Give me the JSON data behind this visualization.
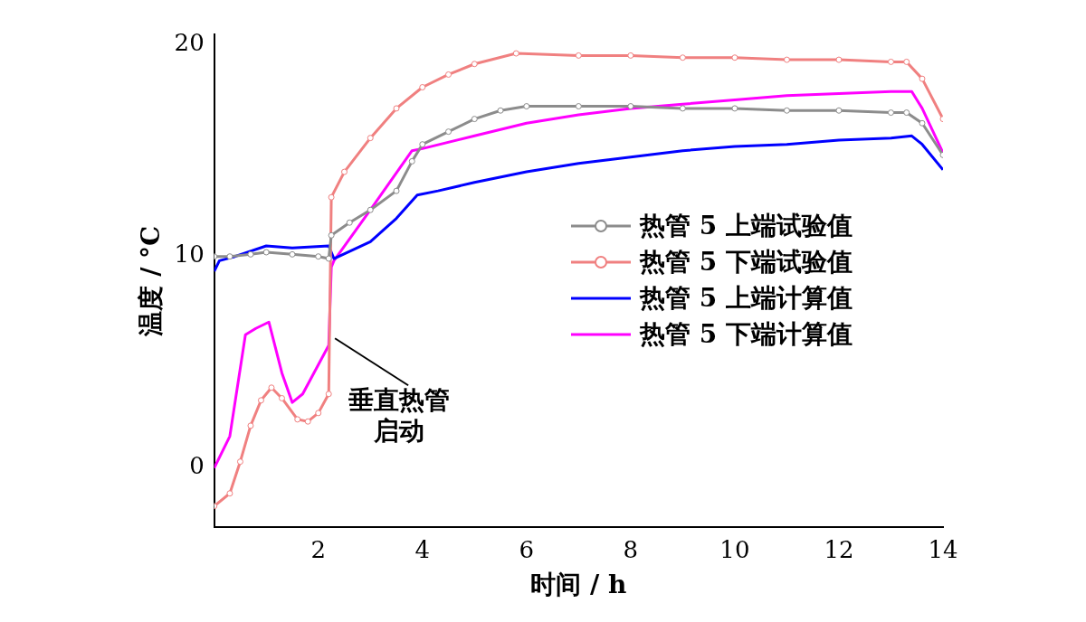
{
  "chart_data": {
    "type": "line",
    "xlabel": "时间 / h",
    "ylabel": "温度 / °C",
    "xlim": [
      0,
      14
    ],
    "xticks": [
      2,
      4,
      6,
      8,
      10,
      12,
      14
    ],
    "ylim": [
      -2.8,
      20.5
    ],
    "yticks": [
      0,
      10,
      20
    ],
    "grid": false,
    "legend": "right",
    "line_style": "solid",
    "annotations": [
      {
        "text": "垂直热管启动",
        "x": 2.25,
        "y": 6.3
      }
    ],
    "series": [
      {
        "name": "热管 5 上端试验值",
        "color": "#8c8c8c",
        "marker": "circle",
        "x": [
          0,
          0.3,
          0.7,
          1.0,
          1.5,
          2.0,
          2.2,
          2.25,
          2.6,
          3.0,
          3.5,
          3.8,
          4.0,
          4.5,
          5,
          5.5,
          6,
          7,
          8,
          9,
          10,
          11,
          12,
          13,
          13.3,
          13.6,
          14
        ],
        "values": [
          10.0,
          10.0,
          10.1,
          10.2,
          10.1,
          10.0,
          9.9,
          11.0,
          11.6,
          12.2,
          13.1,
          14.5,
          15.3,
          15.9,
          16.5,
          16.9,
          17.1,
          17.1,
          17.1,
          17.0,
          17.0,
          16.9,
          16.9,
          16.8,
          16.8,
          16.3,
          14.8
        ]
      },
      {
        "name": "热管 5 下端试验值",
        "color": "#f08080",
        "marker": "circle",
        "x": [
          0,
          0.3,
          0.5,
          0.7,
          0.9,
          1.1,
          1.3,
          1.6,
          1.8,
          2.0,
          2.2,
          2.25,
          2.5,
          3.0,
          3.5,
          4.0,
          4.5,
          5,
          5.8,
          7,
          8,
          9,
          10,
          11,
          12,
          13,
          13.3,
          13.6,
          14
        ],
        "values": [
          -1.8,
          -1.2,
          0.3,
          2.0,
          3.2,
          3.8,
          3.3,
          2.3,
          2.2,
          2.6,
          3.5,
          12.8,
          14.0,
          15.6,
          17.0,
          18.0,
          18.6,
          19.1,
          19.6,
          19.5,
          19.5,
          19.4,
          19.4,
          19.3,
          19.3,
          19.2,
          19.2,
          18.4,
          16.5
        ]
      },
      {
        "name": "热管 5 上端计算值",
        "color": "#0000ff",
        "marker": "none",
        "x": [
          0,
          0.1,
          0.4,
          1.0,
          1.5,
          2.2,
          2.3,
          3.0,
          3.5,
          3.9,
          4.3,
          5,
          6,
          7,
          8,
          9,
          10,
          11,
          12,
          13,
          13.4,
          13.6,
          14
        ],
        "values": [
          9.3,
          9.8,
          10.0,
          10.5,
          10.4,
          10.5,
          9.9,
          10.7,
          11.8,
          12.9,
          13.1,
          13.5,
          14.0,
          14.4,
          14.7,
          15.0,
          15.2,
          15.3,
          15.5,
          15.6,
          15.7,
          15.3,
          14.1
        ]
      },
      {
        "name": "热管 5 下端计算值",
        "color": "#ff00ff",
        "marker": "none",
        "x": [
          0,
          0.3,
          0.6,
          0.8,
          1.05,
          1.3,
          1.5,
          1.7,
          2.2,
          2.25,
          2.3,
          3.0,
          3.8,
          4.0,
          5,
          6,
          7,
          8,
          9,
          10,
          11,
          12,
          13,
          13.4,
          13.6,
          14
        ],
        "values": [
          0,
          1.5,
          6.3,
          6.6,
          6.9,
          4.5,
          3.1,
          3.5,
          5.8,
          9.5,
          9.8,
          12.2,
          15.0,
          15.1,
          15.7,
          16.3,
          16.7,
          17.0,
          17.2,
          17.4,
          17.6,
          17.7,
          17.8,
          17.8,
          17.0,
          14.9
        ]
      }
    ]
  }
}
